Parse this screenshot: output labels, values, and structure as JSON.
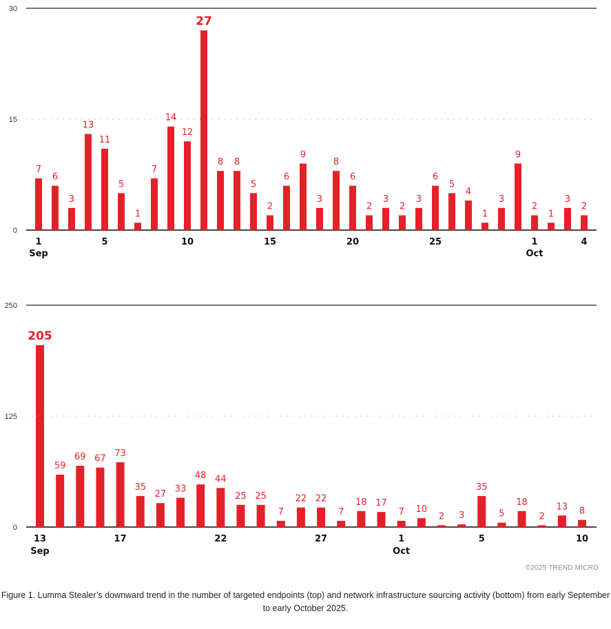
{
  "chart_data": [
    {
      "type": "bar",
      "title": "Targeted endpoints",
      "ylim": [
        0,
        30
      ],
      "yticks": [
        0,
        15,
        30
      ],
      "grid": "dotted at midpoint, solid at top",
      "bar_color": "#e32129",
      "label_color": "#e32129",
      "categories": [
        "Sep 1",
        "Sep 2",
        "Sep 3",
        "Sep 4",
        "Sep 5",
        "Sep 6",
        "Sep 7",
        "Sep 8",
        "Sep 9",
        "Sep 10",
        "Sep 11",
        "Sep 12",
        "Sep 13",
        "Sep 14",
        "Sep 15",
        "Sep 16",
        "Sep 17",
        "Sep 18",
        "Sep 19",
        "Sep 20",
        "Sep 21",
        "Sep 22",
        "Sep 23",
        "Sep 24",
        "Sep 25",
        "Sep 26",
        "Sep 27",
        "Sep 28",
        "Sep 29",
        "Sep 30",
        "Oct 1",
        "Oct 2",
        "Oct 3",
        "Oct 4"
      ],
      "values": [
        7,
        6,
        3,
        13,
        11,
        5,
        1,
        7,
        14,
        12,
        27,
        8,
        8,
        5,
        2,
        6,
        9,
        3,
        8,
        6,
        2,
        3,
        2,
        3,
        6,
        5,
        4,
        1,
        3,
        9,
        2,
        1,
        3,
        2
      ],
      "peak_index": 10,
      "xtick_labels": [
        {
          "index": 0,
          "label": "1",
          "month": "Sep"
        },
        {
          "index": 4,
          "label": "5"
        },
        {
          "index": 9,
          "label": "10"
        },
        {
          "index": 14,
          "label": "15"
        },
        {
          "index": 19,
          "label": "20"
        },
        {
          "index": 24,
          "label": "25"
        },
        {
          "index": 30,
          "label": "1",
          "month": "Oct"
        },
        {
          "index": 33,
          "label": "4"
        }
      ]
    },
    {
      "type": "bar",
      "title": "Network infrastructure sourcing activity",
      "ylim": [
        0,
        250
      ],
      "yticks": [
        0,
        125,
        250
      ],
      "grid": "dotted at midpoint, solid at top",
      "bar_color": "#e32129",
      "label_color": "#e32129",
      "categories": [
        "Sep 13",
        "Sep 14",
        "Sep 15",
        "Sep 16",
        "Sep 17",
        "Sep 18",
        "Sep 19",
        "Sep 20",
        "Sep 21",
        "Sep 22",
        "Sep 23",
        "Sep 24",
        "Sep 25",
        "Sep 26",
        "Sep 27",
        "Sep 28",
        "Sep 29",
        "Sep 30",
        "Oct 1",
        "Oct 2",
        "Oct 3",
        "Oct 4",
        "Oct 5",
        "Oct 6",
        "Oct 7",
        "Oct 8",
        "Oct 9",
        "Oct 10"
      ],
      "values": [
        205,
        59,
        69,
        67,
        73,
        35,
        27,
        33,
        48,
        44,
        25,
        25,
        7,
        22,
        22,
        7,
        18,
        17,
        7,
        10,
        2,
        3,
        35,
        5,
        18,
        2,
        13,
        8
      ],
      "peak_index": 0,
      "xtick_labels": [
        {
          "index": 0,
          "label": "13",
          "month": "Sep"
        },
        {
          "index": 4,
          "label": "17"
        },
        {
          "index": 9,
          "label": "22"
        },
        {
          "index": 14,
          "label": "27"
        },
        {
          "index": 18,
          "label": "1",
          "month": "Oct"
        },
        {
          "index": 22,
          "label": "5"
        },
        {
          "index": 27,
          "label": "10"
        }
      ]
    }
  ],
  "copyright": "©2025 TREND MICRO",
  "caption": "Figure 1. Lumma Stealer’s downward trend in the number of targeted endpoints (top) and network infrastructure sourcing activity (bottom) from early September to early October 2025."
}
